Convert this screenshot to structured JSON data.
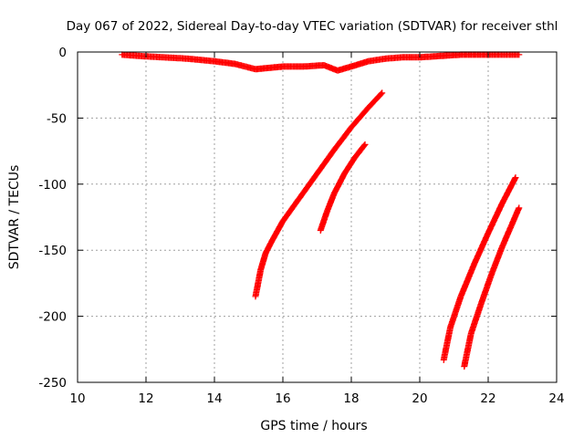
{
  "chart_data": {
    "type": "scatter",
    "title": "Day 067 of 2022, Sidereal Day-to-day VTEC variation (SDTVAR) for receiver sthl",
    "xlabel": "GPS time / hours",
    "ylabel": "SDTVAR / TECUs",
    "xlim": [
      10,
      24
    ],
    "ylim": [
      -250,
      0
    ],
    "xticks": [
      "10",
      "12",
      "14",
      "16",
      "18",
      "20",
      "22",
      "24"
    ],
    "yticks": [
      "0",
      "-50",
      "-100",
      "-150",
      "-200",
      "-250"
    ],
    "grid": true,
    "marker": "plus",
    "color": "#ff0000",
    "series": [
      {
        "x": [
          11.3,
          11.8,
          12.5,
          13.2,
          14.0,
          14.6,
          15.2,
          15.6,
          16.0,
          16.6,
          17.2,
          17.6,
          18.0,
          18.5,
          19.0,
          19.5,
          20.0,
          20.6,
          21.2,
          22.0,
          22.9
        ],
        "y": [
          -2,
          -3,
          -4,
          -5,
          -7,
          -9,
          -13,
          -12,
          -11,
          -11,
          -10,
          -14,
          -11,
          -7,
          -5,
          -4,
          -4,
          -3,
          -2,
          -2,
          -2
        ]
      },
      {
        "x": [
          15.2,
          15.35,
          15.5,
          15.7,
          16.0,
          16.5,
          17.0,
          17.5,
          18.0,
          18.5,
          18.9
        ],
        "y": [
          -185,
          -165,
          -152,
          -142,
          -128,
          -110,
          -92,
          -74,
          -57,
          -42,
          -31
        ]
      },
      {
        "x": [
          17.1,
          17.3,
          17.5,
          17.8,
          18.1,
          18.4
        ],
        "y": [
          -135,
          -120,
          -107,
          -92,
          -80,
          -70
        ]
      },
      {
        "x": [
          20.7,
          20.9,
          21.2,
          21.6,
          22.0,
          22.4,
          22.8
        ],
        "y": [
          -233,
          -208,
          -185,
          -160,
          -137,
          -115,
          -95
        ]
      },
      {
        "x": [
          21.3,
          21.5,
          21.8,
          22.1,
          22.4,
          22.7,
          22.9
        ],
        "y": [
          -238,
          -213,
          -190,
          -168,
          -148,
          -130,
          -118
        ]
      }
    ]
  }
}
